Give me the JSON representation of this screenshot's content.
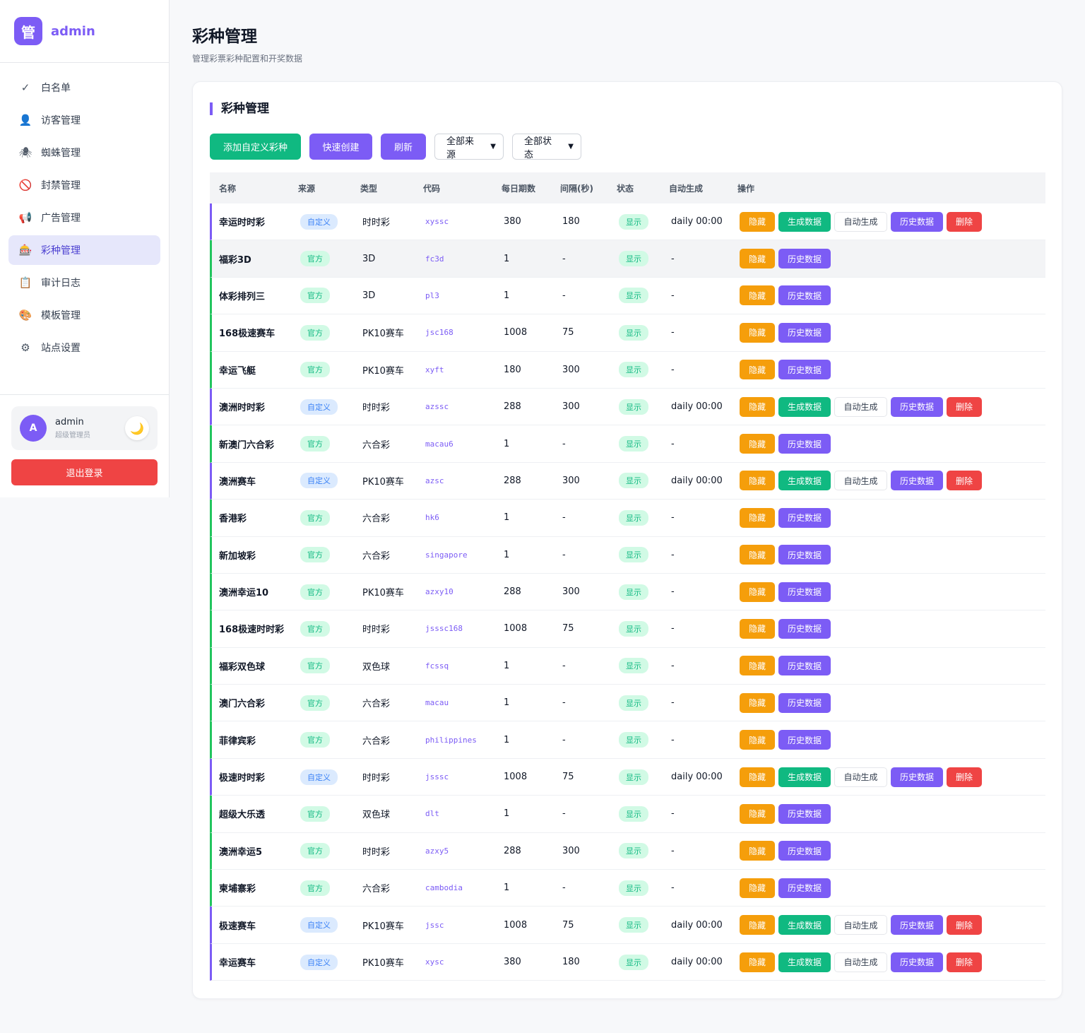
{
  "sidebar": {
    "logo_char": "管",
    "brand": "admin",
    "items": [
      {
        "label": "白名单",
        "icon": "✓",
        "icon_name": "check-icon"
      },
      {
        "label": "访客管理",
        "icon": "👤",
        "icon_name": "user-icon"
      },
      {
        "label": "蜘蛛管理",
        "icon": "🕷",
        "icon_name": "spider-icon"
      },
      {
        "label": "封禁管理",
        "icon": "🚫",
        "icon_name": "ban-icon"
      },
      {
        "label": "广告管理",
        "icon": "📢",
        "icon_name": "megaphone-icon"
      },
      {
        "label": "彩种管理",
        "icon": "🎰",
        "icon_name": "slot-machine-icon"
      },
      {
        "label": "审计日志",
        "icon": "📋",
        "icon_name": "clipboard-icon"
      },
      {
        "label": "模板管理",
        "icon": "🎨",
        "icon_name": "palette-icon"
      },
      {
        "label": "站点设置",
        "icon": "⚙",
        "icon_name": "gear-icon"
      }
    ],
    "active_index": 5,
    "user": {
      "avatar": "A",
      "name": "admin",
      "role": "超级管理员",
      "theme_icon": "🌙"
    },
    "logout": "退出登录"
  },
  "page": {
    "title": "彩种管理",
    "subtitle": "管理彩票彩种配置和开奖数据"
  },
  "card": {
    "title": "彩种管理",
    "toolbar": {
      "add_custom": "添加自定义彩种",
      "quick_create": "快速创建",
      "refresh": "刷新",
      "source_filter": "全部来源",
      "status_filter": "全部状态"
    },
    "headers": [
      "名称",
      "来源",
      "类型",
      "代码",
      "每日期数",
      "间隔(秒)",
      "状态",
      "自动生成",
      "操作"
    ],
    "op_labels": {
      "hide": "隐藏",
      "generate": "生成数据",
      "auto": "自动生成",
      "history": "历史数据",
      "delete": "删除"
    },
    "rows": [
      {
        "name": "幸运时时彩",
        "source": "自定义",
        "type": "时时彩",
        "code": "xyssc",
        "daily": "380",
        "interval": "180",
        "status": "显示",
        "auto": "daily 00:00",
        "custom": true
      },
      {
        "name": "福彩3D",
        "source": "官方",
        "type": "3D",
        "code": "fc3d",
        "daily": "1",
        "interval": "-",
        "status": "显示",
        "auto": "-",
        "custom": false
      },
      {
        "name": "体彩排列三",
        "source": "官方",
        "type": "3D",
        "code": "pl3",
        "daily": "1",
        "interval": "-",
        "status": "显示",
        "auto": "-",
        "custom": false
      },
      {
        "name": "168极速赛车",
        "source": "官方",
        "type": "PK10赛车",
        "code": "jsc168",
        "daily": "1008",
        "interval": "75",
        "status": "显示",
        "auto": "-",
        "custom": false
      },
      {
        "name": "幸运飞艇",
        "source": "官方",
        "type": "PK10赛车",
        "code": "xyft",
        "daily": "180",
        "interval": "300",
        "status": "显示",
        "auto": "-",
        "custom": false
      },
      {
        "name": "澳洲时时彩",
        "source": "自定义",
        "type": "时时彩",
        "code": "azssc",
        "daily": "288",
        "interval": "300",
        "status": "显示",
        "auto": "daily 00:00",
        "custom": true
      },
      {
        "name": "新澳门六合彩",
        "source": "官方",
        "type": "六合彩",
        "code": "macau6",
        "daily": "1",
        "interval": "-",
        "status": "显示",
        "auto": "-",
        "custom": false
      },
      {
        "name": "澳洲赛车",
        "source": "自定义",
        "type": "PK10赛车",
        "code": "azsc",
        "daily": "288",
        "interval": "300",
        "status": "显示",
        "auto": "daily 00:00",
        "custom": true
      },
      {
        "name": "香港彩",
        "source": "官方",
        "type": "六合彩",
        "code": "hk6",
        "daily": "1",
        "interval": "-",
        "status": "显示",
        "auto": "-",
        "custom": false
      },
      {
        "name": "新加坡彩",
        "source": "官方",
        "type": "六合彩",
        "code": "singapore",
        "daily": "1",
        "interval": "-",
        "status": "显示",
        "auto": "-",
        "custom": false
      },
      {
        "name": "澳洲幸运10",
        "source": "官方",
        "type": "PK10赛车",
        "code": "azxy10",
        "daily": "288",
        "interval": "300",
        "status": "显示",
        "auto": "-",
        "custom": false
      },
      {
        "name": "168极速时时彩",
        "source": "官方",
        "type": "时时彩",
        "code": "jsssc168",
        "daily": "1008",
        "interval": "75",
        "status": "显示",
        "auto": "-",
        "custom": false
      },
      {
        "name": "福彩双色球",
        "source": "官方",
        "type": "双色球",
        "code": "fcssq",
        "daily": "1",
        "interval": "-",
        "status": "显示",
        "auto": "-",
        "custom": false
      },
      {
        "name": "澳门六合彩",
        "source": "官方",
        "type": "六合彩",
        "code": "macau",
        "daily": "1",
        "interval": "-",
        "status": "显示",
        "auto": "-",
        "custom": false
      },
      {
        "name": "菲律宾彩",
        "source": "官方",
        "type": "六合彩",
        "code": "philippines",
        "daily": "1",
        "interval": "-",
        "status": "显示",
        "auto": "-",
        "custom": false
      },
      {
        "name": "极速时时彩",
        "source": "自定义",
        "type": "时时彩",
        "code": "jsssc",
        "daily": "1008",
        "interval": "75",
        "status": "显示",
        "auto": "daily 00:00",
        "custom": true
      },
      {
        "name": "超级大乐透",
        "source": "官方",
        "type": "双色球",
        "code": "dlt",
        "daily": "1",
        "interval": "-",
        "status": "显示",
        "auto": "-",
        "custom": false
      },
      {
        "name": "澳洲幸运5",
        "source": "官方",
        "type": "时时彩",
        "code": "azxy5",
        "daily": "288",
        "interval": "300",
        "status": "显示",
        "auto": "-",
        "custom": false
      },
      {
        "name": "柬埔寨彩",
        "source": "官方",
        "type": "六合彩",
        "code": "cambodia",
        "daily": "1",
        "interval": "-",
        "status": "显示",
        "auto": "-",
        "custom": false
      },
      {
        "name": "极速赛车",
        "source": "自定义",
        "type": "PK10赛车",
        "code": "jssc",
        "daily": "1008",
        "interval": "75",
        "status": "显示",
        "auto": "daily 00:00",
        "custom": true
      },
      {
        "name": "幸运赛车",
        "source": "自定义",
        "type": "PK10赛车",
        "code": "xysc",
        "daily": "380",
        "interval": "180",
        "status": "显示",
        "auto": "daily 00:00",
        "custom": true
      }
    ]
  },
  "colors": {
    "accent": "#7c5cf5",
    "green": "#10b981",
    "orange": "#f59e0b",
    "red": "#ef4444"
  }
}
